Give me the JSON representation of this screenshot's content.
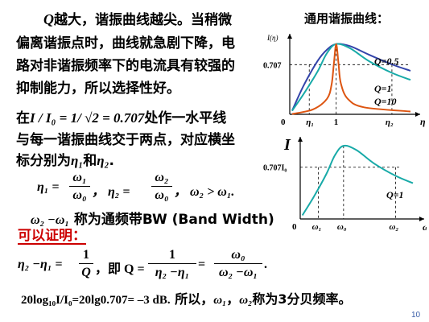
{
  "slide": {
    "page_number": "10",
    "paragraph1": {
      "line1_q": "Q",
      "line1_rest": "越大，谐振曲线越尖。当稍微",
      "line2": "偏离谐振点时，曲线就急剧下降，电",
      "line3": "路对非谐振频率下的电流具有较强的",
      "line4": "抑制能力，所以选择性好。"
    },
    "paragraph2": {
      "line1_prefix": "在",
      "line1_formula": "I / I₀ = 1/ √2 = 0.707",
      "line1_suffix": "处作一水平线",
      "line2": "与每一谐振曲线交于两点，对应横坐",
      "line3_prefix": "标分别为",
      "eta1": "η₁",
      "and": "和",
      "eta2": "η₂",
      "period": "."
    },
    "eta_def": {
      "eta1_lhs": "η₁ = ",
      "w1": "ω₁",
      "w0": "ω₀",
      "eta2_lhs": "，  η₂ = ",
      "w2": "ω₂",
      "cond": "，  ω₂ > ω₁."
    },
    "bandwidth": {
      "diff": "ω₂ −ω₁",
      "desc": " 称为通频带BW (Band Width)"
    },
    "provable": "可以证明：",
    "q_formula": {
      "lhs": "η₂ −η₁ = ",
      "one": "1",
      "q": "Q",
      "mid": "，即 Q = ",
      "den1": "η₂ −η₁",
      "eq2": " = ",
      "w0": "ω₀",
      "den2": "ω₂ −ω₁",
      "end": "."
    },
    "db_line": {
      "formula": "20log₁₀I/I₀=20lg0.707= –3 dB.",
      "gap": "   所以，",
      "w1": "ω₁",
      "comma": "，",
      "w2": "ω₂",
      "rest": "称为3分贝频率。"
    }
  },
  "colors": {
    "axis": "#000000",
    "low_q": "#3344aa",
    "mid_q": "#18aaa8",
    "high_q": "#dd5511",
    "guide": "#000000"
  },
  "chart_data": [
    {
      "type": "line",
      "title": "通用谐振曲线：",
      "ylabel": "I(η)",
      "xlabel": "η",
      "ytick_label": "0.707",
      "xtick_labels": [
        "0",
        "η₁",
        "1",
        "η₂"
      ],
      "x_axis_peak_label": "1",
      "grid": false,
      "series": [
        {
          "name": "Q=0.5",
          "Q": 0.5,
          "color": "#3344aa",
          "x": [
            0.05,
            0.3,
            0.6,
            0.8,
            1.0,
            1.3,
            1.7,
            2.2,
            2.6
          ],
          "y": [
            0.05,
            0.41,
            0.76,
            0.92,
            1.0,
            0.97,
            0.85,
            0.71,
            0.62
          ]
        },
        {
          "name": "Q=1",
          "Q": 1,
          "color": "#18aaa8",
          "x": [
            0.05,
            0.3,
            0.6,
            0.8,
            1.0,
            1.3,
            1.7,
            2.2,
            2.6
          ],
          "y": [
            0.05,
            0.29,
            0.61,
            0.87,
            1.0,
            0.94,
            0.76,
            0.59,
            0.49
          ]
        },
        {
          "name": "Q=10",
          "Q": 10,
          "color": "#dd5511",
          "x": [
            0.05,
            0.5,
            0.8,
            0.9,
            0.95,
            1.0,
            1.05,
            1.1,
            1.25,
            1.6,
            2.6
          ],
          "y": [
            0.005,
            0.07,
            0.22,
            0.42,
            0.72,
            1.0,
            0.72,
            0.44,
            0.22,
            0.1,
            0.04
          ]
        }
      ],
      "xlim": [
        0,
        2.6
      ],
      "ylim": [
        0,
        1.1
      ]
    },
    {
      "type": "line",
      "ylabel": "I",
      "xlabel": "ω",
      "ytick_label": "0.707I₀",
      "xtick_labels": [
        "0",
        "ω₁",
        "ω₀",
        "ω₂"
      ],
      "series": [
        {
          "name": "Q=1",
          "color": "#18aaa8",
          "x": [
            0.05,
            0.3,
            0.6,
            0.8,
            1.0,
            1.3,
            1.7,
            2.2,
            2.6
          ],
          "y": [
            0.05,
            0.29,
            0.61,
            0.87,
            1.0,
            0.94,
            0.76,
            0.59,
            0.49
          ]
        }
      ],
      "grid": false,
      "xlim": [
        0,
        2.6
      ],
      "ylim": [
        0,
        1.1
      ]
    }
  ]
}
